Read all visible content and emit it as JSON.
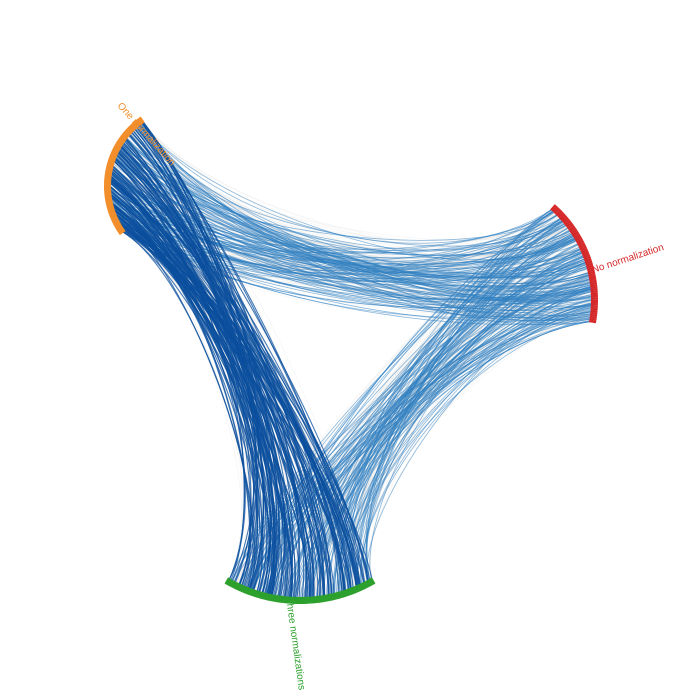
{
  "chart_data": {
    "type": "hierarchical-edge-bundling",
    "groups": [
      {
        "key": "one",
        "label": "One normalization",
        "color": "#f28e2b"
      },
      {
        "key": "none",
        "label": "No normalization",
        "color": "#d62728"
      },
      {
        "key": "three",
        "label": "Three normalizations",
        "color": "#2ca02c"
      }
    ],
    "edge_colors": {
      "strong": "#0b4f9e",
      "medium": "#2f7fc1",
      "faint": "#cfcfcf"
    },
    "links": [
      {
        "from": "one",
        "to": "three",
        "weight": "strong"
      },
      {
        "from": "one",
        "to": "none",
        "weight": "medium"
      },
      {
        "from": "none",
        "to": "three",
        "weight": "medium"
      },
      {
        "from": "one",
        "to": "none",
        "weight": "faint"
      },
      {
        "from": "none",
        "to": "three",
        "weight": "faint"
      },
      {
        "from": "one",
        "to": "three",
        "weight": "faint"
      }
    ]
  }
}
